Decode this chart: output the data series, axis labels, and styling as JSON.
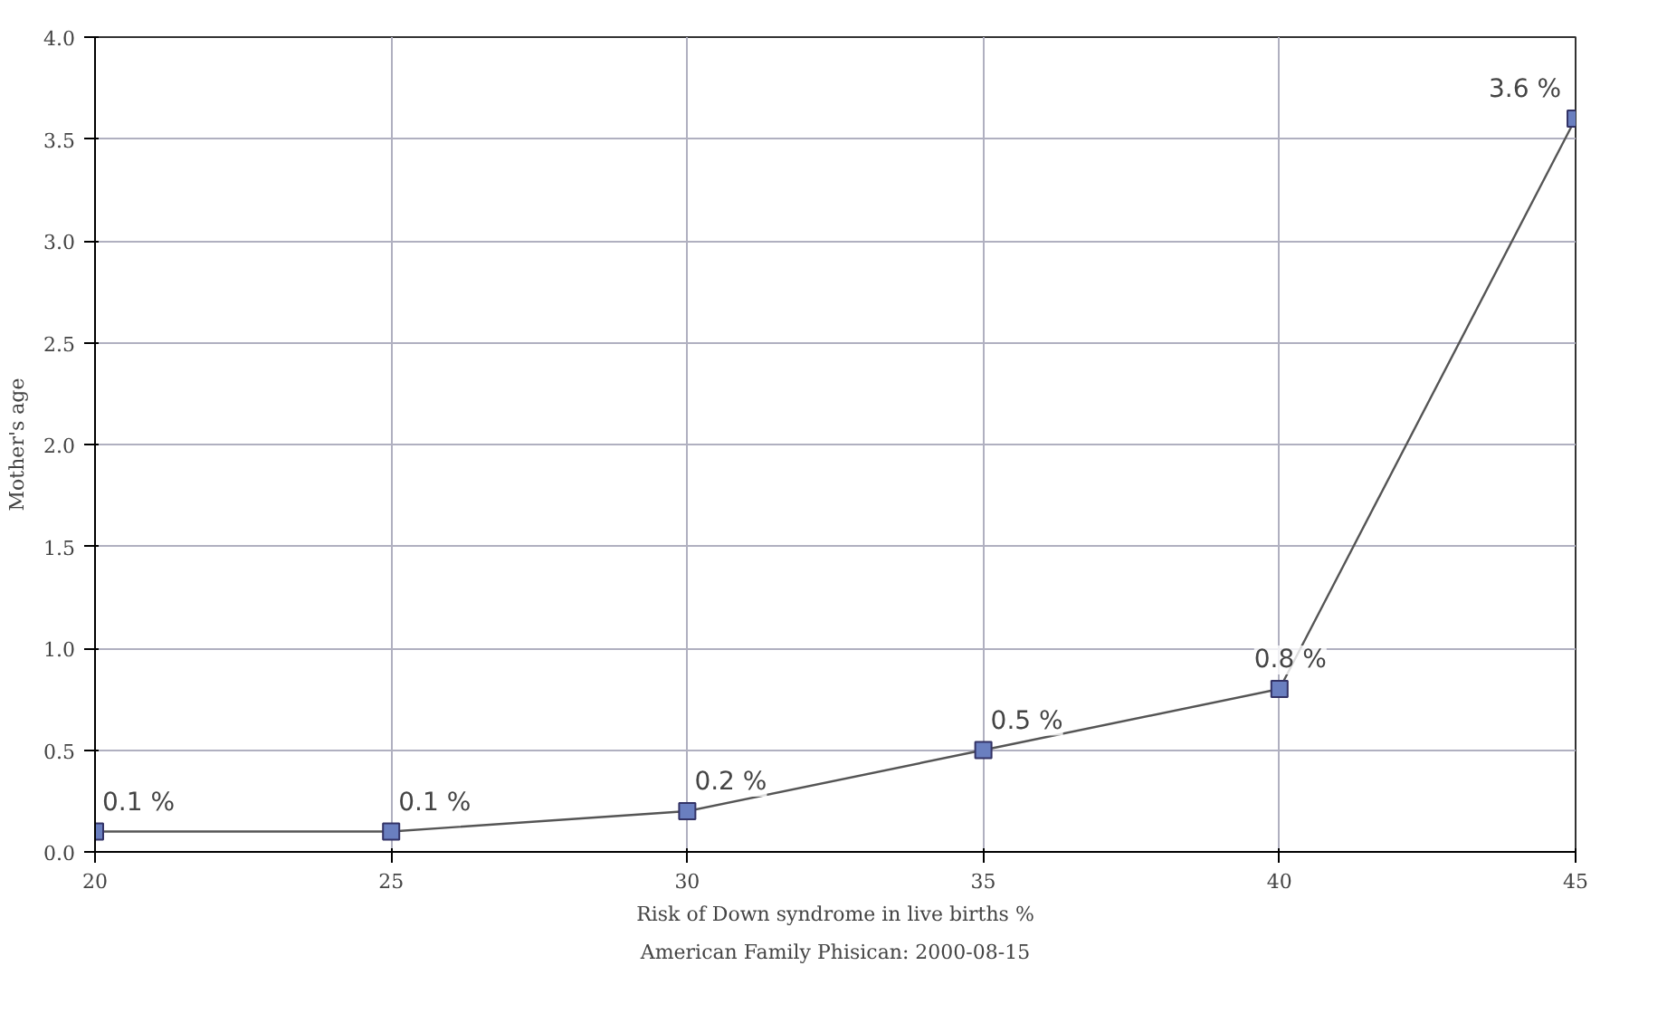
{
  "chart_data": {
    "type": "line",
    "xlabel": "Risk of Down syndrome in live births %",
    "ylabel": "Mother's age",
    "annotations": [
      "American Family Phisican: 2000-08-15"
    ],
    "x": [
      20,
      25,
      30,
      35,
      40,
      45
    ],
    "series": [
      {
        "color": "#6a7fc0",
        "values": [
          0.1,
          0.1,
          0.2,
          0.5,
          0.8,
          3.6
        ],
        "value_labels": [
          "0.1 %",
          "0.1 %",
          "0.2 %",
          "0.5 %",
          "0.8 %",
          "3.6 %"
        ]
      }
    ],
    "xlim": [
      20,
      45
    ],
    "ylim": [
      0,
      4
    ],
    "xticks": [
      20,
      25,
      30,
      35,
      40,
      45
    ],
    "yticks": [
      {
        "value": 0,
        "label": "0.0"
      },
      0.5,
      {
        "value": 1,
        "label": "1.0"
      },
      1.5,
      {
        "value": 2,
        "label": "2.0"
      },
      2.5,
      {
        "value": 3,
        "label": "3.0"
      },
      3.5,
      {
        "value": 4,
        "label": "4.0"
      }
    ],
    "grid": true,
    "marker": "square",
    "line_style": "solid"
  }
}
